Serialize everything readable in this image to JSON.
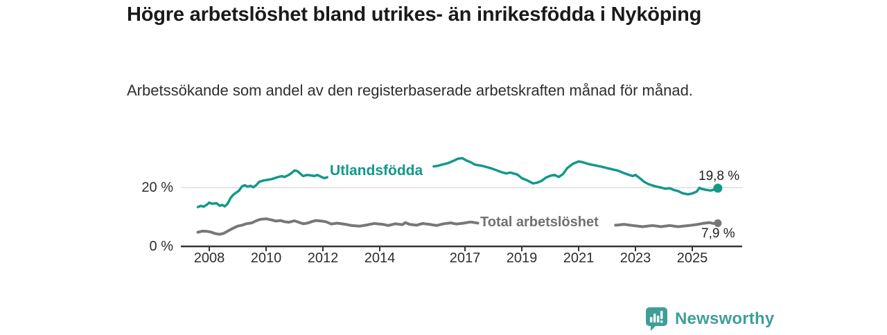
{
  "title": "Högre arbetslöshet bland utrikes- än inrikesfödda i Nyköping",
  "subtitle": "Arbetssökande som andel av den registerbaserade arbetskraften månad för månad.",
  "branding": {
    "logo_text": "Newsworthy",
    "logo_color": "#3f9f98",
    "logo_icon": "speech-bubble-bar-chart"
  },
  "chart_data": {
    "type": "line",
    "title": "Högre arbetslöshet bland utrikes- än inrikesfödda i Nyköping",
    "subtitle": "Arbetssökande som andel av den registerbaserade arbetskraften månad för månad.",
    "unit": "%",
    "grid": "horizontal, only at 20 %",
    "legend_position": "inline-on-line",
    "xlim": [
      2007.4,
      2026.3
    ],
    "ylim": [
      0,
      33
    ],
    "x_ticks": [
      2008,
      2010,
      2012,
      2014,
      2017,
      2019,
      2021,
      2023,
      2025
    ],
    "y_ticks": [
      {
        "value": 0,
        "label": "0 %"
      },
      {
        "value": 20,
        "label": "20 %"
      }
    ],
    "series": [
      {
        "id": "utlandsfodda",
        "name": "Utlandsfödda",
        "color": "#12998a",
        "line_width": 3.5,
        "end_dot_radius": 6.5,
        "end_label": "19,8 %",
        "end_value": 19.8,
        "points": [
          [
            2007.6,
            13.4
          ],
          [
            2007.7,
            13.8
          ],
          [
            2007.8,
            13.5
          ],
          [
            2007.92,
            14.2
          ],
          [
            2008.0,
            14.9
          ],
          [
            2008.1,
            14.5
          ],
          [
            2008.25,
            14.7
          ],
          [
            2008.37,
            13.8
          ],
          [
            2008.45,
            14.1
          ],
          [
            2008.55,
            13.6
          ],
          [
            2008.65,
            14.6
          ],
          [
            2008.75,
            16.5
          ],
          [
            2008.85,
            17.6
          ],
          [
            2008.95,
            18.3
          ],
          [
            2009.05,
            19.0
          ],
          [
            2009.15,
            20.4
          ],
          [
            2009.25,
            20.8
          ],
          [
            2009.35,
            20.3
          ],
          [
            2009.45,
            20.6
          ],
          [
            2009.55,
            20.1
          ],
          [
            2009.65,
            20.8
          ],
          [
            2009.75,
            21.9
          ],
          [
            2009.9,
            22.4
          ],
          [
            2010.05,
            22.6
          ],
          [
            2010.2,
            22.9
          ],
          [
            2010.4,
            23.5
          ],
          [
            2010.55,
            23.9
          ],
          [
            2010.65,
            23.6
          ],
          [
            2010.8,
            24.3
          ],
          [
            2010.9,
            25.0
          ],
          [
            2011.0,
            25.8
          ],
          [
            2011.1,
            25.6
          ],
          [
            2011.2,
            24.8
          ],
          [
            2011.3,
            23.9
          ],
          [
            2011.45,
            24.3
          ],
          [
            2011.6,
            24.1
          ],
          [
            2011.7,
            23.9
          ],
          [
            2011.8,
            24.3
          ],
          [
            2011.95,
            23.6
          ],
          [
            2012.05,
            23.2
          ],
          [
            2012.15,
            23.5
          ],
          [
            2015.9,
            27.2
          ],
          [
            2016.05,
            27.4
          ],
          [
            2016.2,
            27.8
          ],
          [
            2016.4,
            28.3
          ],
          [
            2016.6,
            29.1
          ],
          [
            2016.75,
            29.8
          ],
          [
            2016.9,
            30.0
          ],
          [
            2017.05,
            29.2
          ],
          [
            2017.2,
            28.6
          ],
          [
            2017.35,
            27.8
          ],
          [
            2017.6,
            27.4
          ],
          [
            2017.9,
            26.6
          ],
          [
            2018.1,
            25.9
          ],
          [
            2018.3,
            25.2
          ],
          [
            2018.45,
            24.8
          ],
          [
            2018.6,
            25.1
          ],
          [
            2018.85,
            24.4
          ],
          [
            2019.0,
            23.2
          ],
          [
            2019.2,
            22.4
          ],
          [
            2019.4,
            21.4
          ],
          [
            2019.55,
            21.7
          ],
          [
            2019.7,
            22.3
          ],
          [
            2019.85,
            23.4
          ],
          [
            2020.0,
            24.0
          ],
          [
            2020.15,
            24.3
          ],
          [
            2020.3,
            23.6
          ],
          [
            2020.45,
            24.6
          ],
          [
            2020.6,
            26.6
          ],
          [
            2020.8,
            28.1
          ],
          [
            2021.0,
            28.9
          ],
          [
            2021.15,
            28.6
          ],
          [
            2021.35,
            28.0
          ],
          [
            2021.55,
            27.6
          ],
          [
            2021.8,
            27.1
          ],
          [
            2022.1,
            26.4
          ],
          [
            2022.4,
            25.7
          ],
          [
            2022.6,
            24.9
          ],
          [
            2022.75,
            24.4
          ],
          [
            2022.9,
            23.9
          ],
          [
            2023.0,
            24.3
          ],
          [
            2023.15,
            23.2
          ],
          [
            2023.3,
            22.0
          ],
          [
            2023.45,
            21.2
          ],
          [
            2023.6,
            20.7
          ],
          [
            2023.75,
            20.3
          ],
          [
            2023.9,
            20.0
          ],
          [
            2024.05,
            19.6
          ],
          [
            2024.2,
            19.8
          ],
          [
            2024.35,
            19.2
          ],
          [
            2024.5,
            18.8
          ],
          [
            2024.65,
            18.1
          ],
          [
            2024.85,
            17.7
          ],
          [
            2025.0,
            18.0
          ],
          [
            2025.15,
            18.6
          ],
          [
            2025.25,
            19.9
          ],
          [
            2025.35,
            19.5
          ],
          [
            2025.5,
            19.2
          ],
          [
            2025.65,
            19.0
          ],
          [
            2025.8,
            19.4
          ],
          [
            2025.9,
            19.8
          ]
        ]
      },
      {
        "id": "total",
        "name": "Total arbetslöshet",
        "color": "#77777b",
        "line_width": 4,
        "end_dot_radius": 5.5,
        "end_label": "7,9 %",
        "end_value": 7.9,
        "points": [
          [
            2007.6,
            4.8
          ],
          [
            2007.75,
            5.2
          ],
          [
            2007.92,
            5.1
          ],
          [
            2008.05,
            4.9
          ],
          [
            2008.2,
            4.4
          ],
          [
            2008.35,
            4.1
          ],
          [
            2008.5,
            4.4
          ],
          [
            2008.65,
            5.2
          ],
          [
            2008.8,
            6.0
          ],
          [
            2009.0,
            6.9
          ],
          [
            2009.15,
            7.2
          ],
          [
            2009.3,
            7.7
          ],
          [
            2009.5,
            8.0
          ],
          [
            2009.65,
            8.7
          ],
          [
            2009.8,
            9.2
          ],
          [
            2010.0,
            9.4
          ],
          [
            2010.2,
            9.0
          ],
          [
            2010.35,
            8.6
          ],
          [
            2010.5,
            8.8
          ],
          [
            2010.65,
            8.4
          ],
          [
            2010.8,
            8.2
          ],
          [
            2011.0,
            8.7
          ],
          [
            2011.15,
            8.2
          ],
          [
            2011.3,
            7.7
          ],
          [
            2011.45,
            7.9
          ],
          [
            2011.6,
            8.4
          ],
          [
            2011.75,
            8.8
          ],
          [
            2011.95,
            8.6
          ],
          [
            2012.1,
            8.4
          ],
          [
            2012.3,
            7.6
          ],
          [
            2012.5,
            7.9
          ],
          [
            2012.8,
            7.5
          ],
          [
            2013.0,
            7.1
          ],
          [
            2013.3,
            6.9
          ],
          [
            2013.6,
            7.4
          ],
          [
            2013.8,
            7.8
          ],
          [
            2014.1,
            7.5
          ],
          [
            2014.3,
            7.1
          ],
          [
            2014.55,
            7.7
          ],
          [
            2014.8,
            7.4
          ],
          [
            2014.9,
            8.1
          ],
          [
            2015.05,
            7.5
          ],
          [
            2015.3,
            7.2
          ],
          [
            2015.5,
            7.8
          ],
          [
            2015.75,
            7.5
          ],
          [
            2016.0,
            7.1
          ],
          [
            2016.25,
            7.7
          ],
          [
            2016.5,
            8.0
          ],
          [
            2016.7,
            7.6
          ],
          [
            2016.95,
            7.9
          ],
          [
            2017.2,
            8.3
          ],
          [
            2017.45,
            7.9
          ],
          [
            2022.3,
            7.2
          ],
          [
            2022.6,
            7.5
          ],
          [
            2022.9,
            7.1
          ],
          [
            2023.25,
            6.7
          ],
          [
            2023.6,
            7.1
          ],
          [
            2023.9,
            6.7
          ],
          [
            2024.2,
            7.1
          ],
          [
            2024.5,
            6.7
          ],
          [
            2024.9,
            7.1
          ],
          [
            2025.2,
            7.5
          ],
          [
            2025.35,
            7.8
          ],
          [
            2025.6,
            8.1
          ],
          [
            2025.75,
            7.8
          ],
          [
            2025.9,
            7.9
          ]
        ]
      }
    ],
    "axis_color": "#333333",
    "grid_color": "#d8d8d8"
  }
}
